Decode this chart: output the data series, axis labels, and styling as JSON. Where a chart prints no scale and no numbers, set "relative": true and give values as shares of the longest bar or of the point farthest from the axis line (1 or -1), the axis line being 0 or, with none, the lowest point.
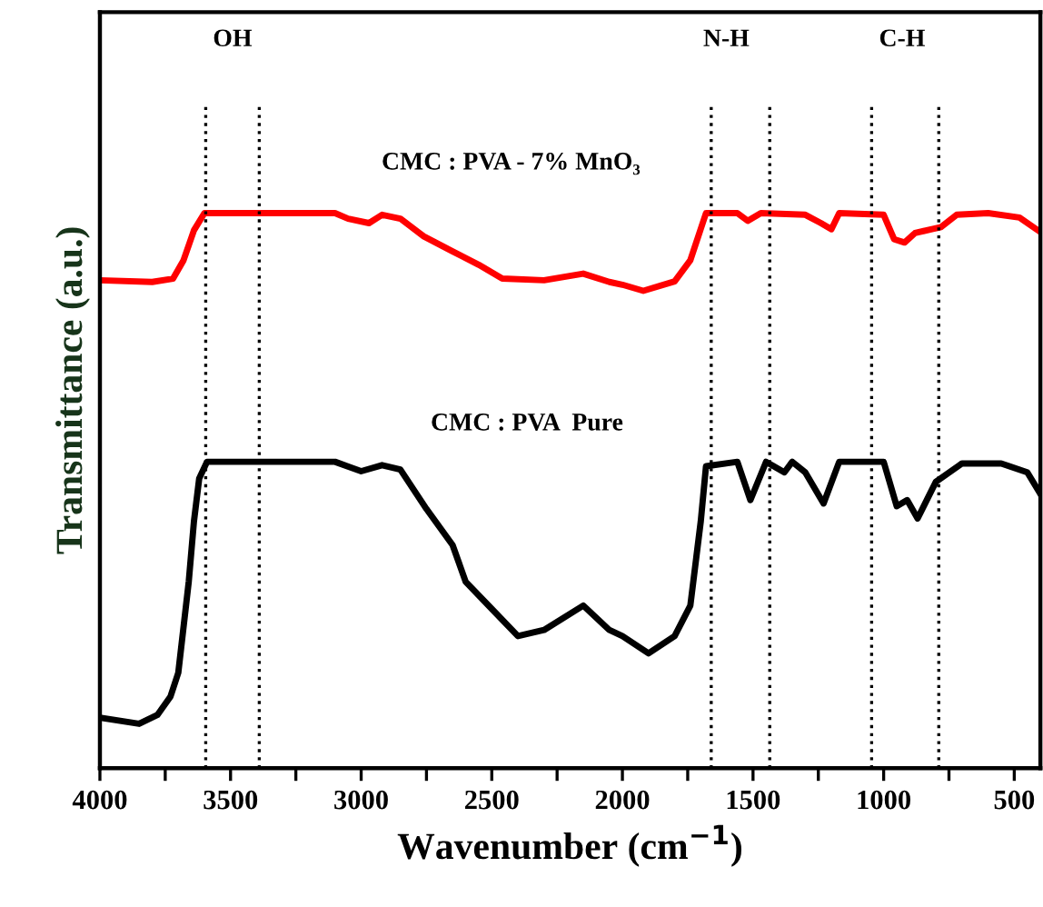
{
  "chart_data": {
    "type": "line",
    "relative": true,
    "xlabel": "Wavenumber (cm$^{−1}$)",
    "ylabel": "Transmittance (a.u.)",
    "xlim": [
      4000,
      400
    ],
    "xticks": [
      4000,
      {
        "value": 3750,
        "label": null
      },
      3500,
      {
        "value": 3250,
        "label": null
      },
      3000,
      {
        "value": 2750,
        "label": null
      },
      2500,
      {
        "value": 2250,
        "label": null
      },
      2000,
      {
        "value": 1750,
        "label": null
      },
      1500,
      {
        "value": 1250,
        "label": null
      },
      1000,
      {
        "value": 750,
        "label": null
      },
      500
    ],
    "series": [
      {
        "name": "CMC : PVA - 7% MnO₃",
        "color": "#ff0000",
        "x": [
          4000,
          3800,
          3720,
          3680,
          3640,
          3600,
          3100,
          3050,
          2970,
          2920,
          2850,
          2760,
          2650,
          2550,
          2460,
          2300,
          2150,
          2050,
          2000,
          1920,
          1800,
          1740,
          1680,
          1560,
          1520,
          1470,
          1300,
          1240,
          1200,
          1170,
          1000,
          960,
          920,
          880,
          780,
          720,
          600,
          480,
          400
        ],
        "values": [
          0.879,
          0.876,
          0.882,
          0.915,
          0.969,
          1.0,
          1.0,
          0.99,
          0.982,
          0.997,
          0.99,
          0.958,
          0.931,
          0.907,
          0.882,
          0.879,
          0.891,
          0.876,
          0.871,
          0.86,
          0.877,
          0.915,
          1.0,
          1.0,
          0.986,
          1.0,
          0.997,
          0.982,
          0.971,
          1.0,
          0.997,
          0.953,
          0.947,
          0.964,
          0.975,
          0.997,
          1.0,
          0.992,
          0.966
        ]
      },
      {
        "name": "CMC : PVA  Pure",
        "color": "#000000",
        "x": [
          4000,
          3850,
          3780,
          3730,
          3700,
          3660,
          3640,
          3620,
          3590,
          3100,
          3000,
          2920,
          2850,
          2750,
          2650,
          2600,
          2500,
          2400,
          2300,
          2150,
          2050,
          2000,
          1900,
          1800,
          1740,
          1700,
          1680,
          1560,
          1510,
          1450,
          1380,
          1350,
          1300,
          1230,
          1170,
          1000,
          950,
          910,
          870,
          800,
          700,
          550,
          450,
          400
        ],
        "values": [
          0.091,
          0.08,
          0.096,
          0.129,
          0.172,
          0.336,
          0.445,
          0.522,
          0.552,
          0.552,
          0.535,
          0.546,
          0.538,
          0.467,
          0.402,
          0.336,
          0.287,
          0.238,
          0.249,
          0.293,
          0.249,
          0.238,
          0.207,
          0.238,
          0.293,
          0.445,
          0.544,
          0.552,
          0.483,
          0.552,
          0.533,
          0.552,
          0.533,
          0.477,
          0.552,
          0.552,
          0.472,
          0.483,
          0.45,
          0.516,
          0.549,
          0.549,
          0.533,
          0.494
        ]
      }
    ],
    "ref_lines": [
      {
        "axis": "x",
        "value": 3595,
        "color": "#000000",
        "line_style": "dotted"
      },
      {
        "axis": "x",
        "value": 3390,
        "color": "#000000",
        "line_style": "dotted"
      },
      {
        "axis": "x",
        "value": 1660,
        "color": "#000000",
        "line_style": "dotted"
      },
      {
        "axis": "x",
        "value": 1436,
        "color": "#000000",
        "line_style": "dotted"
      },
      {
        "axis": "x",
        "value": 1046,
        "color": "#000000",
        "line_style": "dotted"
      },
      {
        "axis": "x",
        "value": 789,
        "color": "#000000",
        "line_style": "dotted"
      }
    ],
    "annotations": [
      "OH",
      "N-H",
      "C-H"
    ],
    "line_style": "solid",
    "marker": "none",
    "grid": false,
    "legend": false
  }
}
